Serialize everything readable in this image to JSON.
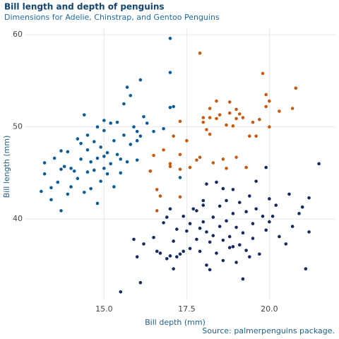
{
  "chart_data": {
    "type": "scatter",
    "title": "Bill length and depth of penguins",
    "subtitle": "Dimensions for Adelie, Chinstrap, and Gentoo Penguins",
    "x_label": "Bill depth (mm)",
    "y_label": "Bill length (mm)",
    "caption": "Source: palmerpenguins package.",
    "xlim": [
      12.6,
      22.0
    ],
    "ylim": [
      31.2,
      60.7
    ],
    "xticks": [
      {
        "value": 15,
        "label": "15.0"
      },
      {
        "value": 17.5,
        "label": "17.5"
      },
      {
        "value": 20,
        "label": "20.0"
      }
    ],
    "yticks": [
      40,
      50,
      60
    ],
    "grid": true,
    "series": [
      {
        "color": "#0a5c99",
        "x": [
          13.1,
          13.2,
          13.2,
          13.4,
          13.4,
          13.5,
          13.6,
          13.7,
          13.7,
          13.7,
          13.8,
          13.9,
          13.9,
          14.0,
          14.0,
          14.1,
          14.2,
          14.2,
          14.3,
          14.3,
          14.4,
          14.4,
          14.5,
          14.5,
          14.5,
          14.6,
          14.6,
          14.7,
          14.7,
          14.8,
          14.8,
          14.8,
          14.9,
          15.0,
          15.0,
          15.0,
          15.0,
          15.1,
          15.1,
          15.2,
          15.2,
          15.3,
          15.3,
          15.4,
          15.4,
          15.5,
          15.6,
          15.6,
          15.7,
          15.7,
          15.8,
          15.8,
          15.9,
          16.0,
          16.0,
          16.1,
          16.1,
          16.2,
          16.3,
          16.4,
          16.5,
          16.8,
          17.0,
          17.0,
          17.0,
          17.1,
          17.3,
          16.0,
          15.5,
          14.9
        ],
        "values": [
          43.0,
          44.9,
          46.1,
          43.4,
          42.1,
          46.6,
          44.0,
          40.9,
          47.4,
          45.4,
          45.7,
          42.7,
          47.3,
          43.5,
          45.5,
          45.2,
          48.7,
          44.4,
          46.5,
          48.2,
          51.3,
          42.9,
          47.5,
          45.1,
          49.1,
          46.2,
          43.3,
          48.4,
          45.3,
          50.0,
          46.6,
          41.7,
          47.8,
          46.8,
          49.6,
          45.5,
          50.7,
          47.2,
          44.9,
          50.4,
          46.0,
          43.5,
          48.5,
          47.0,
          50.5,
          45.0,
          49.1,
          52.5,
          54.3,
          46.2,
          53.4,
          48.1,
          50.0,
          49.5,
          46.4,
          55.1,
          49.0,
          51.1,
          50.4,
          45.2,
          49.5,
          49.8,
          52.1,
          55.9,
          59.6,
          52.2,
          44.5,
          48.5,
          46.5,
          44.1
        ]
      },
      {
        "color": "#c85a10",
        "x": [
          16.4,
          16.5,
          16.6,
          16.6,
          16.7,
          16.8,
          17.0,
          17.0,
          17.1,
          17.3,
          17.3,
          17.3,
          17.3,
          17.5,
          17.6,
          17.8,
          17.9,
          17.9,
          18.0,
          18.0,
          18.1,
          18.2,
          18.2,
          18.3,
          18.4,
          18.4,
          18.5,
          18.6,
          18.7,
          18.7,
          18.8,
          18.8,
          18.9,
          19.0,
          19.0,
          19.0,
          19.1,
          19.2,
          19.3,
          19.4,
          19.5,
          19.6,
          19.7,
          19.8,
          19.9,
          19.9,
          20.0,
          20.0,
          20.3,
          20.7,
          20.8,
          18.2
        ],
        "values": [
          45.2,
          46.9,
          40.9,
          43.2,
          42.5,
          47.5,
          45.7,
          46.0,
          49.0,
          47.0,
          45.4,
          42.4,
          50.6,
          48.5,
          45.6,
          46.4,
          46.7,
          58.0,
          51.0,
          50.5,
          49.7,
          52.0,
          49.2,
          46.1,
          50.9,
          52.8,
          51.3,
          46.5,
          50.2,
          45.5,
          52.7,
          51.5,
          50.1,
          51.9,
          46.7,
          50.9,
          51.4,
          51.0,
          45.6,
          49.0,
          50.5,
          49.0,
          50.8,
          55.8,
          53.5,
          52.2,
          52.8,
          50.0,
          51.7,
          52.0,
          54.2,
          51.0
        ]
      },
      {
        "color": "#152a5e",
        "x": [
          15.5,
          15.9,
          16.0,
          16.1,
          16.2,
          16.5,
          16.6,
          16.7,
          16.8,
          16.9,
          17.0,
          17.0,
          17.1,
          17.1,
          17.2,
          17.3,
          17.4,
          17.5,
          17.6,
          17.6,
          17.7,
          17.8,
          17.8,
          17.9,
          18.0,
          18.0,
          18.1,
          18.1,
          18.2,
          18.2,
          18.3,
          18.4,
          18.4,
          18.5,
          18.5,
          18.6,
          18.6,
          18.7,
          18.7,
          18.8,
          18.8,
          18.9,
          18.9,
          19.0,
          19.0,
          19.1,
          19.1,
          19.2,
          19.2,
          19.3,
          19.3,
          19.4,
          19.5,
          19.5,
          19.6,
          19.7,
          19.8,
          19.9,
          20.0,
          20.0,
          20.1,
          20.2,
          20.3,
          20.5,
          20.6,
          20.7,
          21.0,
          21.1,
          21.2,
          21.2,
          21.5,
          19.6,
          18.0,
          17.4,
          17.9,
          18.3,
          18.9,
          19.4,
          20.9,
          17.2,
          16.9,
          18.6,
          19.9,
          18.1
        ],
        "values": [
          32.1,
          37.8,
          35.9,
          33.1,
          37.3,
          38.0,
          36.5,
          36.3,
          39.6,
          35.7,
          36.0,
          41.1,
          34.6,
          37.6,
          38.9,
          36.2,
          40.3,
          38.7,
          39.5,
          36.8,
          41.1,
          37.8,
          40.9,
          36.5,
          39.7,
          41.5,
          35.0,
          38.6,
          34.5,
          37.5,
          40.2,
          36.3,
          44.0,
          39.2,
          41.4,
          35.5,
          37.7,
          39.8,
          42.0,
          38.1,
          36.9,
          40.6,
          43.2,
          39.1,
          35.3,
          37.2,
          41.8,
          38.5,
          33.5,
          40.8,
          36.6,
          42.5,
          39.5,
          37.9,
          41.1,
          36.2,
          40.3,
          38.8,
          39.7,
          42.2,
          40.3,
          41.5,
          38.1,
          37.3,
          42.7,
          39.2,
          41.3,
          34.6,
          42.3,
          38.6,
          46.0,
          44.1,
          42.0,
          36.5,
          39.0,
          38.2,
          37.0,
          35.9,
          40.6,
          35.9,
          40.2,
          43.3,
          45.6,
          43.8
        ]
      }
    ]
  }
}
